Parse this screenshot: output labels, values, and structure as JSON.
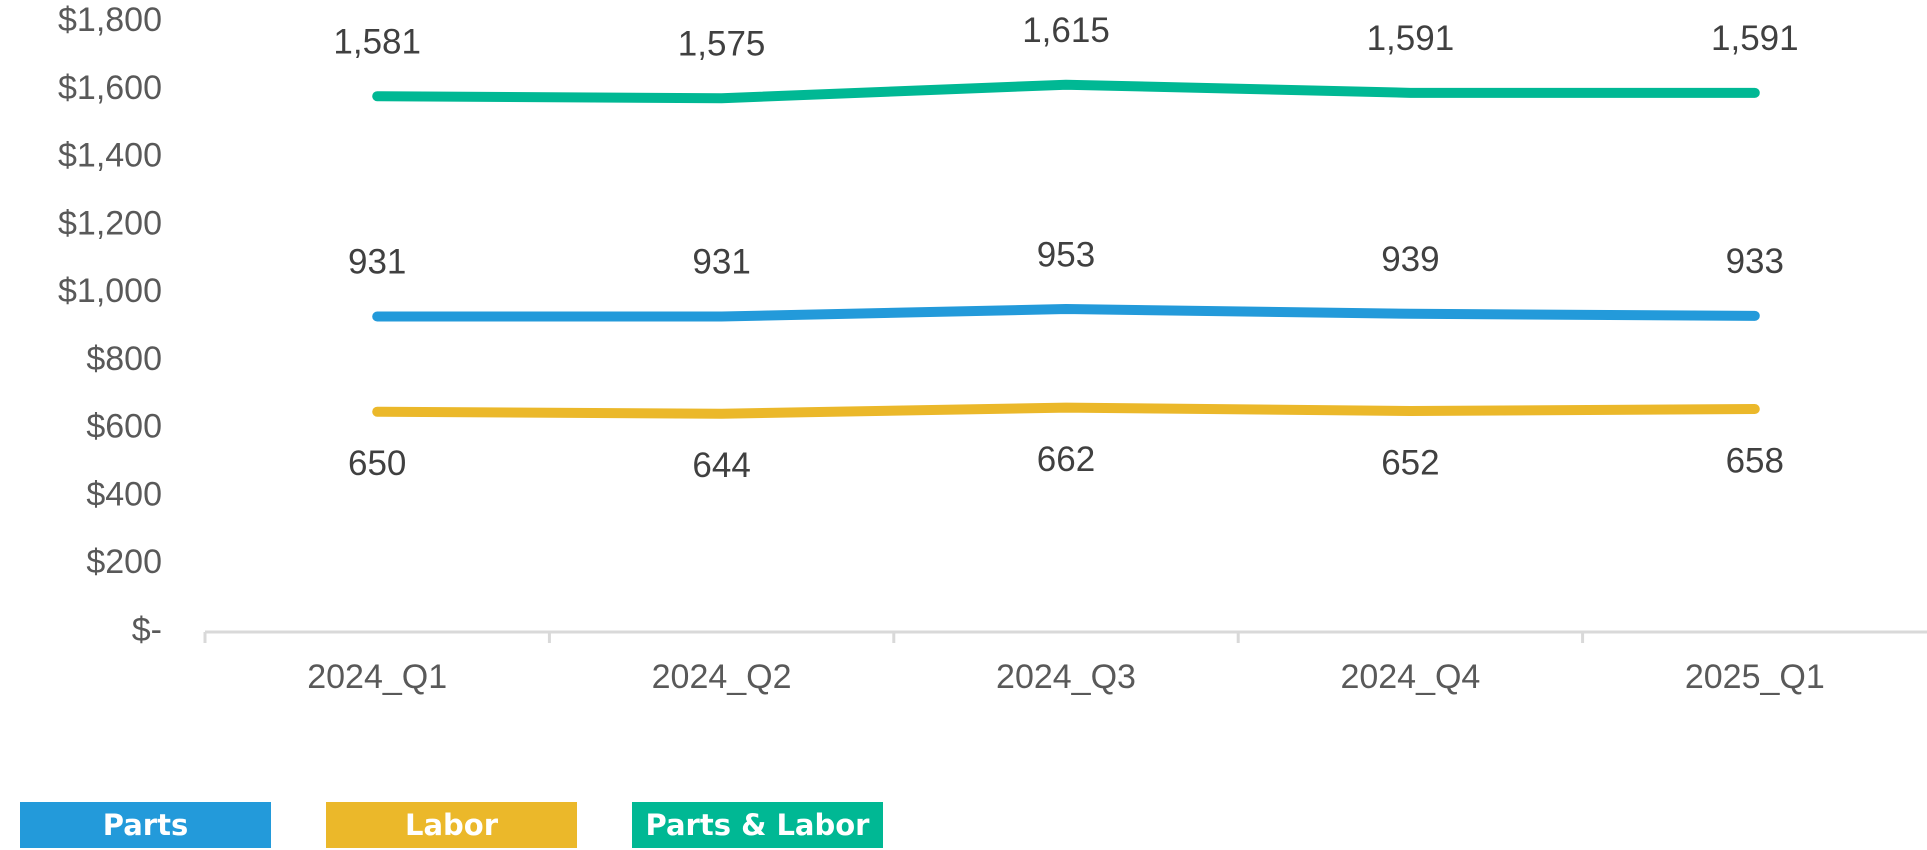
{
  "chart_data": {
    "type": "line",
    "title": "",
    "xlabel": "",
    "ylabel": "",
    "categories": [
      "2024_Q1",
      "2024_Q2",
      "2024_Q3",
      "2024_Q4",
      "2025_Q1"
    ],
    "ylim": [
      0,
      1800
    ],
    "y_ticks": [
      {
        "value": 0,
        "label": "$-"
      },
      {
        "value": 200,
        "label": "$200"
      },
      {
        "value": 400,
        "label": "$400"
      },
      {
        "value": 600,
        "label": "$600"
      },
      {
        "value": 800,
        "label": "$800"
      },
      {
        "value": 1000,
        "label": "$1,000"
      },
      {
        "value": 1200,
        "label": "$1,200"
      },
      {
        "value": 1400,
        "label": "$1,400"
      },
      {
        "value": 1600,
        "label": "$1,600"
      },
      {
        "value": 1800,
        "label": "$1,800"
      }
    ],
    "grid": false,
    "legend_position": "bottom-left",
    "series": [
      {
        "name": "Parts",
        "color": "#239ada",
        "values": [
          931,
          931,
          953,
          939,
          933
        ],
        "labels": [
          "931",
          "931",
          "953",
          "939",
          "933"
        ],
        "label_position": "above"
      },
      {
        "name": "Labor",
        "color": "#ebb82a",
        "values": [
          650,
          644,
          662,
          652,
          658
        ],
        "labels": [
          "650",
          "644",
          "662",
          "652",
          "658"
        ],
        "label_position": "below"
      },
      {
        "name": "Parts & Labor",
        "color": "#00b894",
        "values": [
          1581,
          1575,
          1615,
          1591,
          1591
        ],
        "labels": [
          "1,581",
          "1,575",
          "1,615",
          "1,591",
          "1,591"
        ],
        "label_position": "above"
      }
    ]
  },
  "legend": {
    "items": [
      {
        "label": "Parts",
        "color": "#239ada"
      },
      {
        "label": "Labor",
        "color": "#ebb82a"
      },
      {
        "label": "Parts & Labor",
        "color": "#00b894"
      }
    ]
  }
}
